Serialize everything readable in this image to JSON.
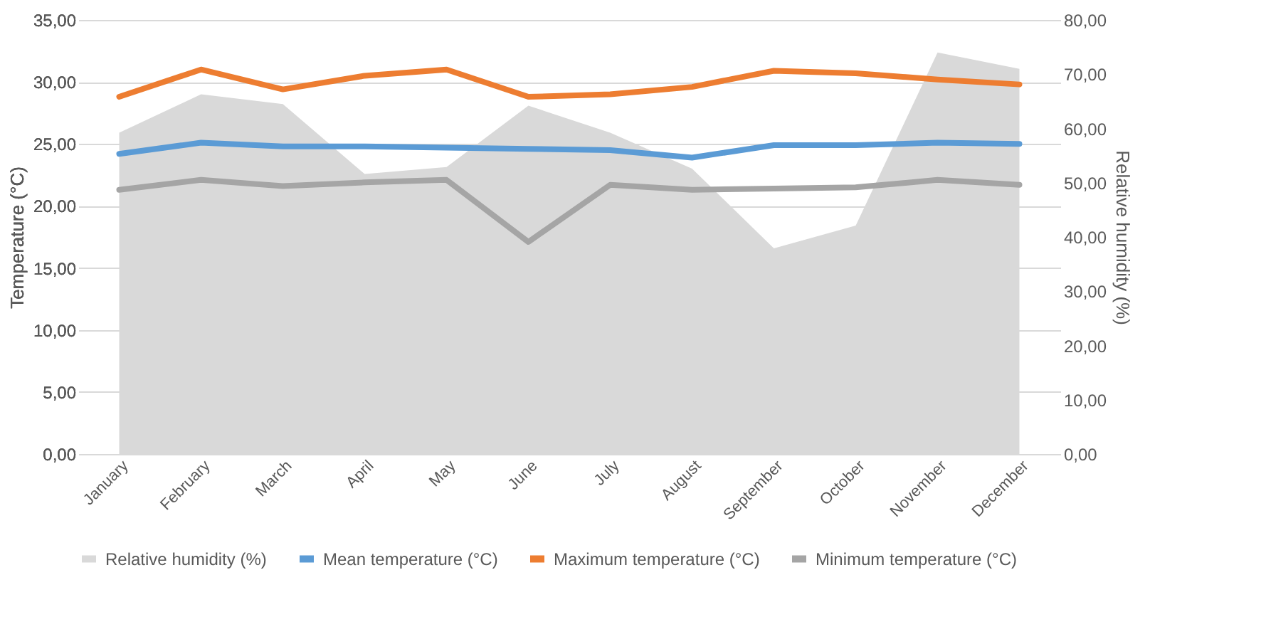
{
  "chart_data": {
    "type": "line",
    "xlabel": null,
    "ylabel": "Temperature (°C)",
    "y2label": "Relative humidity (%)",
    "categories": [
      "January",
      "February",
      "March",
      "April",
      "May",
      "June",
      "July",
      "August",
      "September",
      "October",
      "November",
      "December"
    ],
    "series": [
      {
        "name": "Relative humidity (%)",
        "type": "area",
        "axis": "y2",
        "color": "#d9d9d9",
        "values": [
          59.2,
          66.3,
          64.5,
          51.6,
          52.9,
          64.2,
          59.2,
          52.6,
          37.9,
          42.1,
          74.0,
          71.0
        ]
      },
      {
        "name": "Mean temperature (°C)",
        "color": "#5b9bd5",
        "values": [
          24.2,
          25.1,
          24.8,
          24.8,
          24.7,
          24.6,
          24.5,
          23.9,
          24.9,
          24.9,
          25.1,
          25.0
        ]
      },
      {
        "name": "Maximum temperature (°C)",
        "color": "#ed7d31",
        "values": [
          28.8,
          31.0,
          29.4,
          30.5,
          31.0,
          28.8,
          29.0,
          29.6,
          30.9,
          30.7,
          30.2,
          29.8
        ]
      },
      {
        "name": "Minimum temperature (°C)",
        "color": "#a5a5a5",
        "values": [
          21.3,
          22.1,
          21.6,
          21.9,
          22.1,
          17.1,
          21.7,
          21.3,
          21.4,
          21.5,
          22.1,
          21.7
        ]
      }
    ],
    "ylim": [
      0,
      35
    ],
    "yticks": [
      {
        "value": 0,
        "label": "0,00"
      },
      {
        "value": 5,
        "label": "5,00"
      },
      {
        "value": 10,
        "label": "10,00"
      },
      {
        "value": 15,
        "label": "15,00"
      },
      {
        "value": 20,
        "label": "20,00"
      },
      {
        "value": 25,
        "label": "25,00"
      },
      {
        "value": 30,
        "label": "30,00"
      },
      {
        "value": 35,
        "label": "35,00"
      }
    ],
    "y2lim": [
      0,
      80
    ],
    "y2ticks": [
      {
        "value": 0,
        "label": "0,00"
      },
      {
        "value": 10,
        "label": "10,00"
      },
      {
        "value": 20,
        "label": "20,00"
      },
      {
        "value": 30,
        "label": "30,00"
      },
      {
        "value": 40,
        "label": "40,00"
      },
      {
        "value": 50,
        "label": "50,00"
      },
      {
        "value": 60,
        "label": "60,00"
      },
      {
        "value": 70,
        "label": "70,00"
      },
      {
        "value": 80,
        "label": "80,00"
      }
    ],
    "grid": "y",
    "legend": "bottom",
    "marker": "none",
    "line_style": "solid"
  }
}
